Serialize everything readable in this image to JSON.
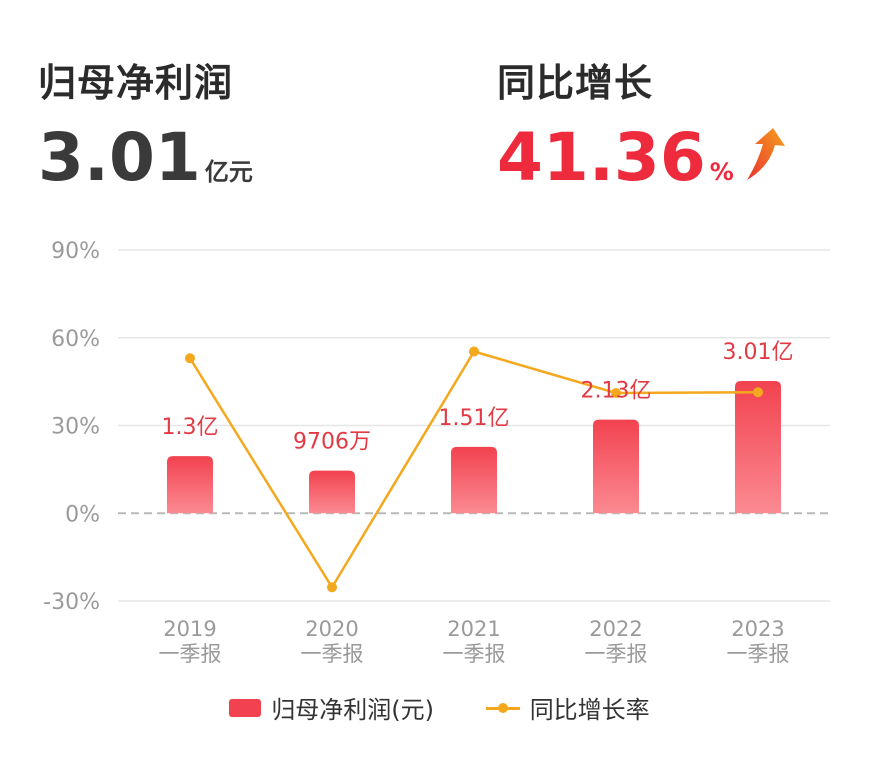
{
  "kpi": {
    "profit_label": "归母净利润",
    "profit_value": "3.01",
    "profit_unit": "亿元",
    "growth_label": "同比增长",
    "growth_value": "41.36",
    "growth_unit": "%",
    "growth_arrow": "up-arrow-icon",
    "growth_color": "#ee2b3d"
  },
  "legend": {
    "bar_label": "归母净利润(元)",
    "line_label": "同比增长率"
  },
  "chart_data": {
    "type": "bar",
    "categories": [
      "2019\n一季报",
      "2020\n一季报",
      "2021\n一季报",
      "2022\n一季报",
      "2023\n一季报"
    ],
    "category_lines": [
      [
        "2019",
        "一季报"
      ],
      [
        "2020",
        "一季报"
      ],
      [
        "2021",
        "一季报"
      ],
      [
        "2022",
        "一季报"
      ],
      [
        "2023",
        "一季报"
      ]
    ],
    "y_ticks": [
      "90%",
      "60%",
      "30%",
      "0%",
      "-30%"
    ],
    "y_tick_values": [
      90,
      60,
      30,
      0,
      -30
    ],
    "ylim": [
      -30,
      90
    ],
    "grid": true,
    "legend_position": "bottom",
    "series": [
      {
        "name": "归母净利润(元)",
        "type": "bar",
        "values": [
          1.3,
          0.9706,
          1.51,
          2.13,
          3.01
        ],
        "labels": [
          "1.3亿",
          "9706万",
          "1.51亿",
          "2.13亿",
          "3.01亿"
        ],
        "color": "#f2424f"
      },
      {
        "name": "同比增长率",
        "type": "line",
        "values": [
          53,
          -25.3,
          55.3,
          41.1,
          41.36
        ],
        "color": "#f3a81d"
      }
    ]
  }
}
